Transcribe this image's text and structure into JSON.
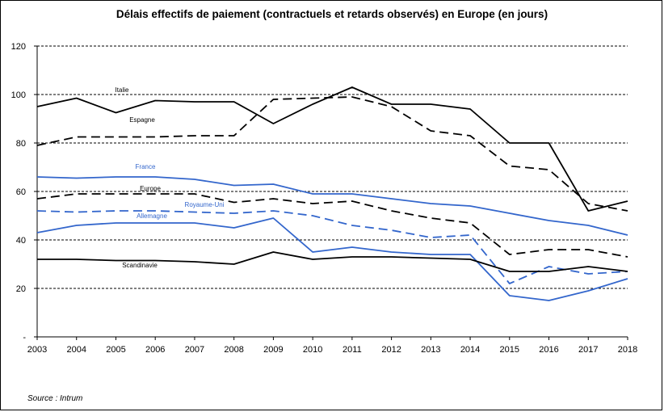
{
  "chart_data": {
    "type": "line",
    "title": "Délais effectifs de paiement (contractuels et retards observés) en Europe (en jours)",
    "source": "Source : Intrum",
    "x": [
      2003,
      2004,
      2005,
      2006,
      2007,
      2008,
      2009,
      2010,
      2011,
      2012,
      2013,
      2014,
      2015,
      2016,
      2017,
      2018
    ],
    "x_ticks": [
      "2003",
      "2004",
      "2005",
      "2006",
      "2007",
      "2008",
      "2009",
      "2010",
      "2011",
      "2012",
      "2013",
      "2014",
      "2015",
      "2016",
      "2017",
      "2018"
    ],
    "y_ticks": [
      "-",
      "20",
      "40",
      "60",
      "80",
      "100",
      "120"
    ],
    "ylim": [
      0,
      120
    ],
    "grid": "horizontal-dashed",
    "series": [
      {
        "name": "Italie",
        "color": "#000000",
        "dash": "solid",
        "values": [
          95,
          98.5,
          92.5,
          97.5,
          97,
          97,
          88,
          96,
          103,
          96,
          96,
          94,
          80,
          80,
          52,
          56
        ]
      },
      {
        "name": "Espagne",
        "color": "#000000",
        "dash": "dashed",
        "values": [
          79,
          82.5,
          82.5,
          82.5,
          83,
          83,
          98,
          98.5,
          99,
          95,
          85,
          83,
          70.5,
          69,
          55,
          52
        ]
      },
      {
        "name": "France",
        "color": "#3366cc",
        "dash": "solid",
        "values": [
          66,
          65.5,
          66,
          66,
          65,
          62.5,
          63,
          59,
          59,
          57,
          55,
          54,
          51,
          48,
          46,
          42
        ]
      },
      {
        "name": "Europe",
        "color": "#000000",
        "dash": "dashed",
        "values": [
          57,
          59,
          59,
          59,
          59,
          55.5,
          57,
          55,
          56,
          52,
          49,
          47,
          34,
          36,
          36,
          33
        ]
      },
      {
        "name": "Royaume-Uni",
        "color": "#3366cc",
        "dash": "dashed",
        "values": [
          52,
          51.5,
          52,
          52,
          51.5,
          51,
          52,
          50,
          46,
          44,
          41,
          42,
          22,
          29,
          26,
          27
        ]
      },
      {
        "name": "Allemagne",
        "color": "#3366cc",
        "dash": "solid",
        "values": [
          43,
          46,
          47,
          47,
          47,
          45,
          49,
          35,
          37,
          35,
          34,
          34,
          17,
          15,
          19,
          24
        ]
      },
      {
        "name": "Scandinavie",
        "color": "#000000",
        "dash": "solid",
        "values": [
          32,
          32,
          31.5,
          31.5,
          31,
          30,
          35,
          32,
          33,
          33,
          32.5,
          32,
          27,
          27,
          29,
          27
        ]
      }
    ]
  }
}
